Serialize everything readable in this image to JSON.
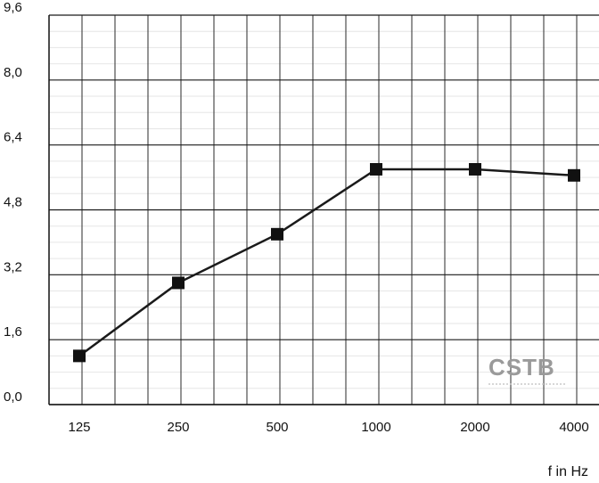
{
  "chart_data": {
    "type": "line",
    "title": "",
    "xlabel": "f in Hz",
    "ylabel": "",
    "categories": [
      "125",
      "250",
      "500",
      "1000",
      "2000",
      "4000"
    ],
    "series": [
      {
        "values": [
          1.2,
          3.0,
          4.2,
          5.8,
          5.8,
          5.65
        ]
      }
    ],
    "yticks": [
      "0,0",
      "1,6",
      "3,2",
      "4,8",
      "6,4",
      "8,0",
      "9,6"
    ],
    "ylim": [
      0,
      9.6
    ],
    "grid": true,
    "line_color": "#1a1a1a",
    "marker": "square"
  },
  "watermark": {
    "text": "CSTB",
    "color": "#9a9a9a"
  }
}
